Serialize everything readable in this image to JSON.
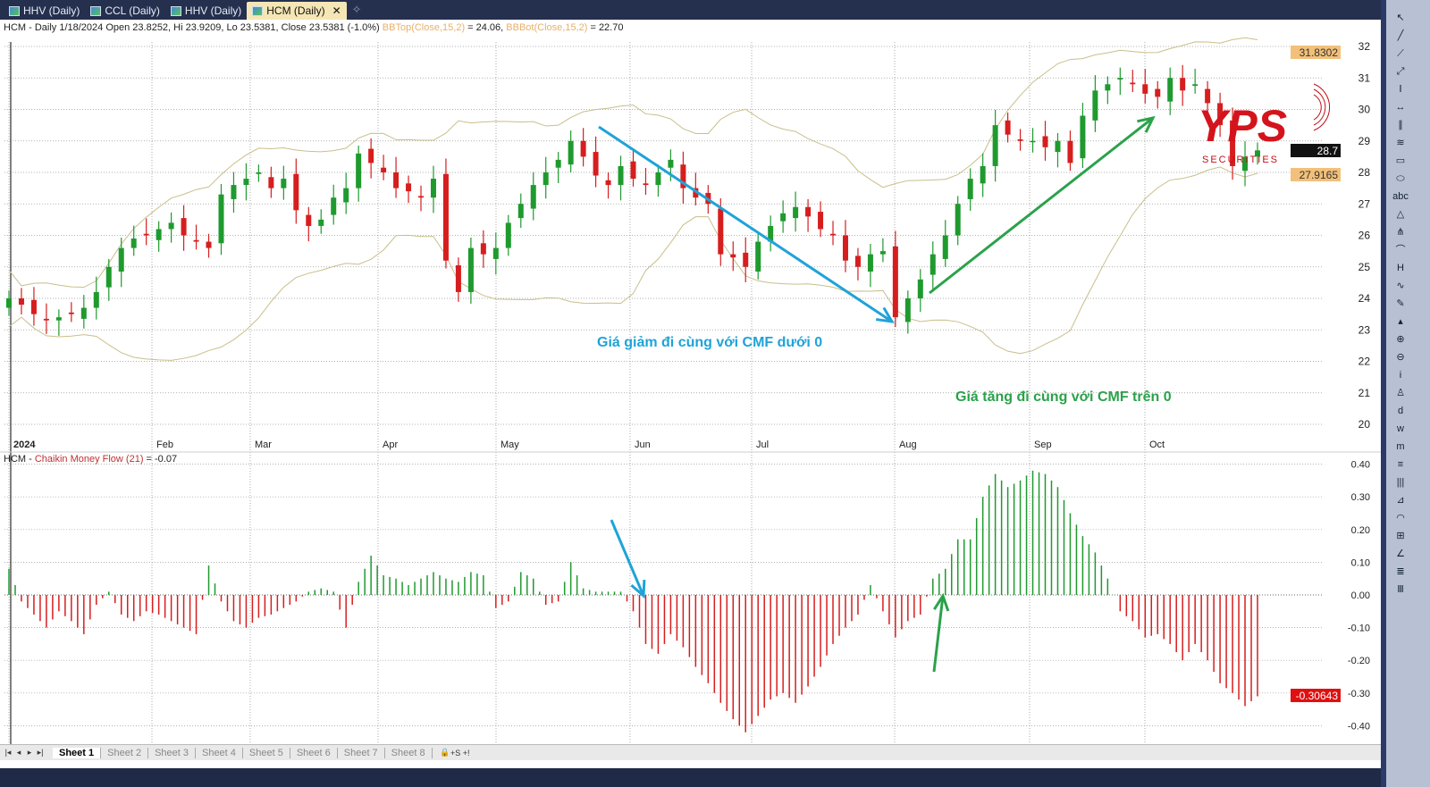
{
  "tabs": [
    {
      "label": "HHV (Daily)"
    },
    {
      "label": "CCL (Daily)"
    },
    {
      "label": "HHV (Daily)"
    },
    {
      "label": "HCM (Daily)",
      "active": true
    }
  ],
  "header": {
    "main": "HCM - Daily 1/18/2024 Open 23.8252, Hi 23.9209, Lo 23.5381, Close 23.5381 (-1.0%)",
    "bbtop": "BBTop(Close,15,2)",
    "bbtop_val": " = 24.06, ",
    "bbbot": "BBBot(Close,15,2)",
    "bbbot_val": " = 22.70"
  },
  "cmf_header": {
    "prefix": "HCM - ",
    "indicator": "Chaikin Money Flow (21)",
    "value": " = -0.07"
  },
  "price_labels": {
    "bbtop": "31.8302",
    "last": "28.7",
    "bbbot": "27.9165"
  },
  "cmf_label": "-0.30643",
  "annotations": {
    "down": "Giá giảm đi cùng với CMF dưới 0",
    "up": "Giá tăng đi cùng với CMF trên 0"
  },
  "logo": {
    "text": "YPS",
    "sub": "SECURITIES"
  },
  "sheets": [
    "Sheet 1",
    "Sheet 2",
    "Sheet 3",
    "Sheet 4",
    "Sheet 5",
    "Sheet 6",
    "Sheet 7",
    "Sheet 8"
  ],
  "colors": {
    "up": "#1f9a2e",
    "down": "#d61e1e",
    "band": "#c8bf8a",
    "blue_arrow": "#1fa3d8",
    "green_arrow": "#2aa24a"
  },
  "chart_data": {
    "type": "candlestick",
    "months": [
      "2024",
      "Feb",
      "Mar",
      "Apr",
      "May",
      "Jun",
      "Jul",
      "Aug",
      "Sep",
      "Oct"
    ],
    "price_ticks": [
      20,
      21,
      22,
      23,
      24,
      25,
      26,
      27,
      28,
      29,
      30,
      31,
      32
    ],
    "cmf_ticks": [
      "0.40",
      "0.30",
      "0.20",
      "0.10",
      "0.00",
      "-0.10",
      "-0.20",
      "-0.30",
      "-0.40"
    ],
    "closes": [
      24.0,
      23.8,
      23.5,
      23.3,
      23.4,
      23.5,
      23.7,
      24.2,
      25.0,
      25.6,
      25.9,
      26.0,
      26.2,
      26.4,
      26.0,
      25.8,
      25.6,
      27.3,
      27.6,
      27.8,
      28.0,
      27.5,
      27.8,
      26.8,
      26.3,
      26.5,
      27.2,
      27.5,
      28.6,
      28.3,
      28.0,
      27.5,
      27.4,
      27.2,
      27.8,
      25.2,
      24.2,
      25.6,
      25.4,
      25.6,
      26.4,
      27.0,
      27.6,
      28.0,
      28.4,
      29.0,
      28.5,
      27.9,
      27.6,
      28.2,
      27.8,
      27.6,
      28.0,
      28.4,
      27.5,
      27.2,
      27.0,
      25.4,
      25.3,
      25.0,
      25.8,
      26.3,
      26.7,
      26.9,
      26.6,
      26.2,
      26.0,
      25.2,
      25.0,
      25.4,
      25.5,
      23.4,
      24.0,
      24.6,
      25.4,
      26.0,
      27.0,
      27.8,
      28.2,
      29.5,
      29.2,
      29.0,
      29.0,
      28.8,
      29.0,
      28.3,
      29.8,
      30.6,
      30.8,
      31.0,
      30.8,
      30.5,
      30.4,
      31.0,
      30.6,
      30.8,
      30.2,
      29.5,
      28.2,
      28.5,
      28.7
    ],
    "cmf": [
      0.08,
      -0.02,
      -0.06,
      -0.1,
      -0.05,
      -0.08,
      -0.12,
      -0.03,
      0.01,
      -0.06,
      -0.08,
      -0.05,
      -0.06,
      -0.08,
      -0.1,
      -0.12,
      0.09,
      -0.02,
      -0.08,
      -0.1,
      -0.07,
      -0.06,
      -0.04,
      -0.02,
      0.01,
      0.02,
      0.01,
      -0.1,
      0.04,
      0.12,
      0.06,
      0.05,
      0.03,
      0.05,
      0.07,
      0.05,
      0.04,
      0.07,
      0.06,
      -0.04,
      -0.02,
      0.07,
      0.05,
      -0.03,
      -0.02,
      0.1,
      0.02,
      0.01,
      0.01,
      0.01,
      -0.05,
      -0.15,
      -0.18,
      -0.12,
      -0.16,
      -0.22,
      -0.27,
      -0.33,
      -0.38,
      -0.42,
      -0.37,
      -0.32,
      -0.3,
      -0.33,
      -0.28,
      -0.22,
      -0.15,
      -0.1,
      -0.06,
      0.03,
      -0.05,
      -0.13,
      -0.08,
      -0.06,
      0.05,
      0.08,
      0.17,
      0.17,
      0.3,
      0.37,
      0.33,
      0.35,
      0.38,
      0.37,
      0.33,
      0.25,
      0.18,
      0.13,
      0.05,
      -0.05,
      -0.08,
      -0.13,
      -0.12,
      -0.15,
      -0.2,
      -0.15,
      -0.2,
      -0.27,
      -0.3,
      -0.34,
      -0.31
    ]
  }
}
